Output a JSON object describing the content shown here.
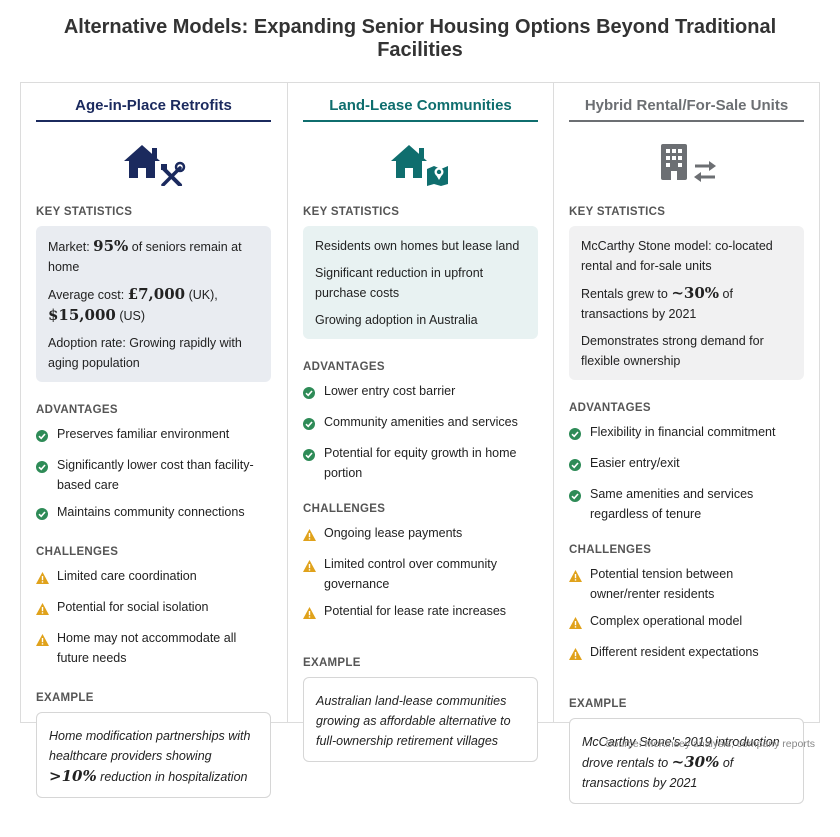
{
  "title": "Alternative Models: Expanding Senior Housing Options Beyond Traditional Facilities",
  "section_labels": {
    "stats": "KEY STATISTICS",
    "advantages": "ADVANTAGES",
    "challenges": "CHALLENGES",
    "example": "EXAMPLE"
  },
  "colors": {
    "navy": "#1b2a5e",
    "teal": "#0f6e6e",
    "gray": "#6c6f73",
    "check": "#2e8b57",
    "warn": "#e0a21b"
  },
  "columns": [
    {
      "title": "Age-in-Place Retrofits",
      "icons": [
        "house-icon",
        "tools-icon"
      ],
      "stats": [
        [
          "Market: ",
          "95%",
          " of seniors remain at home"
        ],
        [
          "Average cost: ",
          "£7,000",
          " (UK), ",
          "$15,000",
          " (US)"
        ],
        [
          "Adoption rate: Growing rapidly with aging population"
        ]
      ],
      "advantages": [
        "Preserves familiar environment",
        "Significantly lower cost than facility-based care",
        "Maintains community connections"
      ],
      "challenges": [
        "Limited care coordination",
        "Potential for social isolation",
        "Home may not accommodate all future needs"
      ],
      "example": [
        "Home modification partnerships with healthcare providers showing ",
        ">10%",
        " reduction in hospitalization"
      ]
    },
    {
      "title": "Land-Lease Communities",
      "icons": [
        "house-icon",
        "map-pin-icon"
      ],
      "stats": [
        [
          "Residents own homes but lease land"
        ],
        [
          "Significant reduction in upfront purchase costs"
        ],
        [
          "Growing adoption in Australia"
        ]
      ],
      "advantages": [
        "Lower entry cost barrier",
        "Community amenities and services",
        "Potential for equity growth in home portion"
      ],
      "challenges": [
        "Ongoing lease payments",
        "Limited control over community governance",
        "Potential for lease rate increases"
      ],
      "example": [
        "Australian land-lease communities growing as affordable alternative to full-ownership retirement villages"
      ]
    },
    {
      "title": "Hybrid Rental/For-Sale Units",
      "icons": [
        "building-icon",
        "exchange-arrows-icon"
      ],
      "stats": [
        [
          "McCarthy Stone model: co-located rental and for-sale units"
        ],
        [
          "Rentals grew to ",
          "~30%",
          " of transactions by 2021"
        ],
        [
          "Demonstrates strong demand for flexible ownership"
        ]
      ],
      "advantages": [
        "Flexibility in financial commitment",
        "Easier entry/exit",
        "Same amenities and services regardless of tenure"
      ],
      "challenges": [
        "Potential tension between owner/renter residents",
        "Complex operational model",
        "Different resident expectations"
      ],
      "example": [
        "McCarthy Stone's 2019 introduction drove rentals to ",
        "~30%",
        " of transactions by 2021"
      ]
    }
  ],
  "source": "Source: McKinsey analysis; company reports"
}
